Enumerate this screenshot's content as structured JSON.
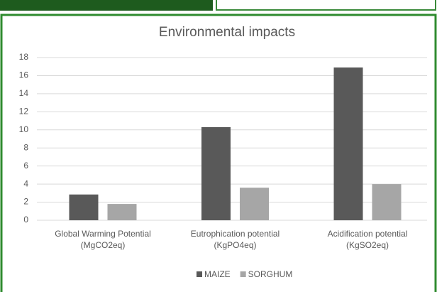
{
  "chart_data": {
    "type": "bar",
    "title": "Environmental impacts",
    "categories": [
      "Global Warming Potential (MgCO2eq)",
      "Eutrophication potential (KgPO4eq)",
      "Acidification potential (KgSO2eq)"
    ],
    "series": [
      {
        "name": "MAIZE",
        "color": "#595959",
        "values": [
          2.85,
          10.3,
          16.9
        ]
      },
      {
        "name": "SORGHUM",
        "color": "#a6a6a6",
        "values": [
          1.8,
          3.6,
          4.0
        ]
      }
    ],
    "ylim": [
      0,
      18
    ],
    "yticks": [
      0,
      2,
      4,
      6,
      8,
      10,
      12,
      14,
      16,
      18
    ],
    "grid": true,
    "legend": "bottom"
  }
}
